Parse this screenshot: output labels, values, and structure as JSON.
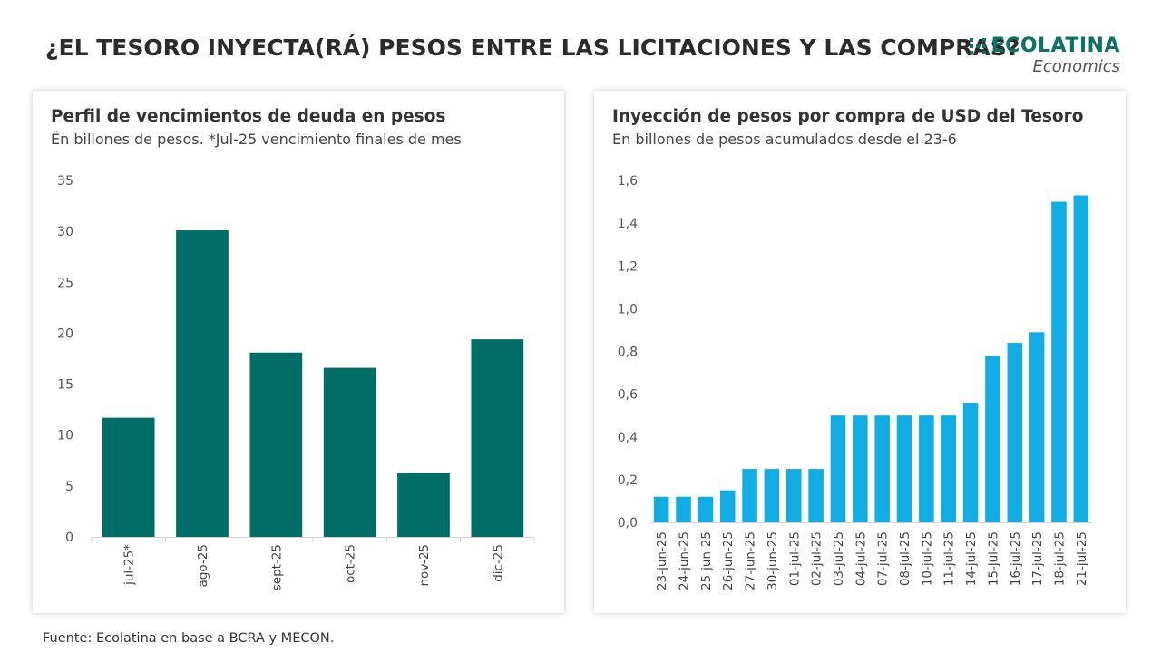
{
  "header": {
    "title": "¿EL TESORO INYECTA(RÁ) PESOS ENTRE LAS LICITACIONES Y LAS COMPRAS?",
    "logo_name": "ECOLATINA",
    "logo_sub": "Economics",
    "brand_color": "#0d7266"
  },
  "footer": {
    "source": "Fuente: Ecolatina en base a BCRA y MECON."
  },
  "chart_data": [
    {
      "type": "bar",
      "title": "Perfil de vencimientos de deuda en pesos",
      "subtitle": "Ën billones de pesos. *Jul-25 vencimiento finales de mes",
      "categories": [
        "jul-25*",
        "ago-25",
        "sept-25",
        "oct-25",
        "nov-25",
        "dic-25"
      ],
      "values": [
        11.7,
        30.1,
        18.1,
        16.6,
        6.3,
        19.4
      ],
      "ylim": [
        0,
        35
      ],
      "yticks": [
        "0",
        "5",
        "10",
        "15",
        "20",
        "25",
        "30",
        "35"
      ],
      "color": "#006e66",
      "grid": false
    },
    {
      "type": "bar",
      "title": "Inyección de pesos por compra de USD del Tesoro",
      "subtitle": "En billones de pesos acumulados desde el 23-6",
      "categories": [
        "23-jun-25",
        "24-jun-25",
        "25-jun-25",
        "26-jun-25",
        "27-jun-25",
        "30-jun-25",
        "01-jul-25",
        "02-jul-25",
        "03-jul-25",
        "04-jul-25",
        "07-jul-25",
        "08-jul-25",
        "10-jul-25",
        "11-jul-25",
        "14-jul-25",
        "15-jul-25",
        "16-jul-25",
        "17-jul-25",
        "18-jul-25",
        "21-jul-25"
      ],
      "values": [
        0.12,
        0.12,
        0.12,
        0.15,
        0.25,
        0.25,
        0.25,
        0.25,
        0.5,
        0.5,
        0.5,
        0.5,
        0.5,
        0.5,
        0.56,
        0.78,
        0.84,
        0.89,
        1.5,
        1.53
      ],
      "ylim": [
        0,
        1.6
      ],
      "yticks": [
        "0,0",
        "0,2",
        "0,4",
        "0,6",
        "0,8",
        "1,0",
        "1,2",
        "1,4",
        "1,6"
      ],
      "color": "#12ace4",
      "grid": false
    }
  ]
}
